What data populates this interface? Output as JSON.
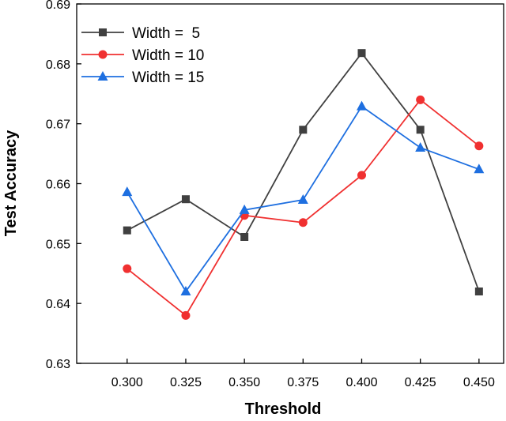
{
  "chart_data": {
    "type": "line",
    "title": "",
    "xlabel": "Threshold",
    "ylabel": "Test Accuracy",
    "x": [
      0.3,
      0.325,
      0.35,
      0.375,
      0.4,
      0.425,
      0.45
    ],
    "x_tick_labels": [
      "0.300",
      "0.325",
      "0.350",
      "0.375",
      "0.400",
      "0.425",
      "0.450"
    ],
    "xlim": [
      0.2785,
      0.4605
    ],
    "ylim": [
      0.63,
      0.69
    ],
    "y_ticks": [
      0.63,
      0.64,
      0.65,
      0.66,
      0.67,
      0.68,
      0.69
    ],
    "y_tick_labels": [
      "0.63",
      "0.64",
      "0.65",
      "0.66",
      "0.67",
      "0.68",
      "0.69"
    ],
    "legend_position": "top-left",
    "grid": false,
    "series": [
      {
        "name": "Width =  5",
        "color": "#404040",
        "marker": "square",
        "values": [
          0.6522,
          0.6574,
          0.6511,
          0.669,
          0.6818,
          0.669,
          0.642
        ]
      },
      {
        "name": "Width = 10",
        "color": "#f03030",
        "marker": "circle",
        "values": [
          0.6458,
          0.638,
          0.6547,
          0.6535,
          0.6614,
          0.674,
          0.6663
        ]
      },
      {
        "name": "Width = 15",
        "color": "#1e6fe0",
        "marker": "triangle",
        "values": [
          0.6586,
          0.642,
          0.6556,
          0.6573,
          0.6729,
          0.666,
          0.6624
        ]
      }
    ]
  }
}
